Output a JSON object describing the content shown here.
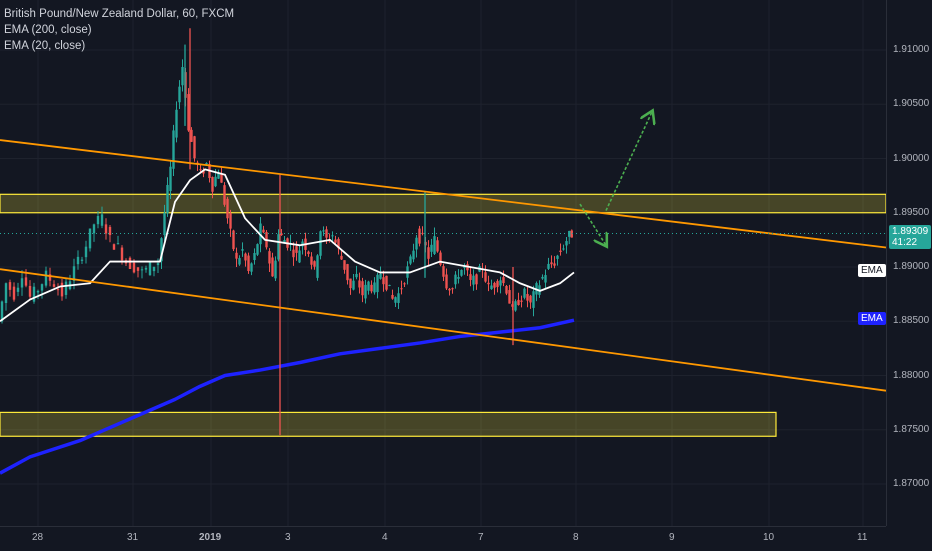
{
  "legend": {
    "title": "British Pound/New Zealand Dollar, 60, FXCM",
    "ema200": "EMA (200, close)",
    "ema20": "EMA (20, close)"
  },
  "price_axis": {
    "ticks": [
      "1.91000",
      "1.90500",
      "1.90000",
      "1.89500",
      "1.89000",
      "1.88500",
      "1.88000",
      "1.87500",
      "1.87000"
    ],
    "current_price": "1.89309",
    "countdown": "41:22",
    "ema20_badge": "EMA",
    "ema200_badge": "EMA"
  },
  "time_axis": {
    "ticks": [
      "28",
      "31",
      "2019",
      "3",
      "4",
      "7",
      "8",
      "9",
      "10",
      "11"
    ]
  },
  "colors": {
    "background": "#131722",
    "up": "#26a69a",
    "down": "#ef5350",
    "ema20": "#ffffff",
    "ema200": "#1e22ff",
    "trendline": "#ff9800",
    "zone": "#ffeb3b",
    "arrows": "#4caf50",
    "price_line": "#26a69a"
  },
  "chart_data": {
    "type": "candlestick",
    "symbol": "GBPNZD",
    "timeframe": "60",
    "ylim": [
      1.866,
      1.9125
    ],
    "price_ticks": [
      1.91,
      1.905,
      1.9,
      1.895,
      1.89,
      1.885,
      1.88,
      1.875,
      1.87
    ],
    "x_labels": [
      "28",
      "31",
      "2019",
      "3",
      "4",
      "7",
      "8",
      "9",
      "10",
      "11"
    ],
    "current_price": 1.89309,
    "ohlc_close_path": [
      [
        0,
        1.885
      ],
      [
        8,
        1.8885
      ],
      [
        16,
        1.8875
      ],
      [
        24,
        1.8895
      ],
      [
        32,
        1.8872
      ],
      [
        40,
        1.888
      ],
      [
        48,
        1.8892
      ],
      [
        56,
        1.8885
      ],
      [
        64,
        1.8875
      ],
      [
        72,
        1.889
      ],
      [
        80,
        1.8905
      ],
      [
        88,
        1.892
      ],
      [
        96,
        1.894
      ],
      [
        104,
        1.8945
      ],
      [
        112,
        1.8925
      ],
      [
        120,
        1.8918
      ],
      [
        128,
        1.8905
      ],
      [
        136,
        1.89
      ],
      [
        144,
        1.8895
      ],
      [
        152,
        1.89
      ],
      [
        160,
        1.8905
      ],
      [
        166,
        1.895
      ],
      [
        172,
        1.899
      ],
      [
        178,
        1.905
      ],
      [
        184,
        1.9085
      ],
      [
        190,
        1.903
      ],
      [
        196,
        1.9
      ],
      [
        202,
        1.8985
      ],
      [
        208,
        1.8995
      ],
      [
        214,
        1.8975
      ],
      [
        220,
        1.899
      ],
      [
        226,
        1.896
      ],
      [
        232,
        1.893
      ],
      [
        238,
        1.8905
      ],
      [
        244,
        1.8915
      ],
      [
        250,
        1.8895
      ],
      [
        256,
        1.891
      ],
      [
        262,
        1.8935
      ],
      [
        268,
        1.892
      ],
      [
        274,
        1.889
      ],
      [
        280,
        1.893
      ],
      [
        286,
        1.8925
      ],
      [
        292,
        1.892
      ],
      [
        298,
        1.891
      ],
      [
        304,
        1.8925
      ],
      [
        310,
        1.8915
      ],
      [
        316,
        1.8895
      ],
      [
        322,
        1.8935
      ],
      [
        328,
        1.8925
      ],
      [
        334,
        1.893
      ],
      [
        340,
        1.8915
      ],
      [
        346,
        1.89
      ],
      [
        352,
        1.888
      ],
      [
        358,
        1.889
      ],
      [
        364,
        1.8875
      ],
      [
        370,
        1.8885
      ],
      [
        376,
        1.888
      ],
      [
        382,
        1.8895
      ],
      [
        388,
        1.8885
      ],
      [
        394,
        1.887
      ],
      [
        400,
        1.8875
      ],
      [
        406,
        1.889
      ],
      [
        412,
        1.8905
      ],
      [
        418,
        1.893
      ],
      [
        424,
        1.8925
      ],
      [
        430,
        1.891
      ],
      [
        436,
        1.8925
      ],
      [
        442,
        1.8905
      ],
      [
        448,
        1.8885
      ],
      [
        454,
        1.888
      ],
      [
        460,
        1.8895
      ],
      [
        466,
        1.89
      ],
      [
        472,
        1.8885
      ],
      [
        478,
        1.889
      ],
      [
        484,
        1.89
      ],
      [
        490,
        1.888
      ],
      [
        496,
        1.8885
      ],
      [
        502,
        1.889
      ],
      [
        508,
        1.888
      ],
      [
        514,
        1.8858
      ],
      [
        520,
        1.887
      ],
      [
        526,
        1.8875
      ],
      [
        532,
        1.8865
      ],
      [
        538,
        1.888
      ],
      [
        544,
        1.889
      ],
      [
        550,
        1.89
      ],
      [
        556,
        1.8905
      ],
      [
        562,
        1.8915
      ],
      [
        568,
        1.8925
      ],
      [
        573,
        1.8931
      ]
    ],
    "ema20_path": [
      [
        0,
        1.885
      ],
      [
        30,
        1.887
      ],
      [
        60,
        1.8882
      ],
      [
        90,
        1.8885
      ],
      [
        110,
        1.8905
      ],
      [
        130,
        1.8905
      ],
      [
        160,
        1.8905
      ],
      [
        175,
        1.896
      ],
      [
        190,
        1.898
      ],
      [
        205,
        1.899
      ],
      [
        225,
        1.8985
      ],
      [
        245,
        1.8945
      ],
      [
        265,
        1.8925
      ],
      [
        300,
        1.892
      ],
      [
        330,
        1.8925
      ],
      [
        355,
        1.8905
      ],
      [
        380,
        1.8895
      ],
      [
        410,
        1.8895
      ],
      [
        440,
        1.8905
      ],
      [
        470,
        1.89
      ],
      [
        500,
        1.8895
      ],
      [
        520,
        1.8885
      ],
      [
        540,
        1.8878
      ],
      [
        560,
        1.8885
      ],
      [
        574,
        1.8895
      ]
    ],
    "ema200_path": [
      [
        0,
        1.871
      ],
      [
        30,
        1.8725
      ],
      [
        80,
        1.874
      ],
      [
        130,
        1.876
      ],
      [
        175,
        1.8778
      ],
      [
        200,
        1.879
      ],
      [
        225,
        1.88
      ],
      [
        260,
        1.8805
      ],
      [
        300,
        1.8812
      ],
      [
        340,
        1.882
      ],
      [
        380,
        1.8825
      ],
      [
        420,
        1.883
      ],
      [
        460,
        1.8836
      ],
      [
        500,
        1.884
      ],
      [
        540,
        1.8844
      ],
      [
        574,
        1.8851
      ]
    ],
    "trendlines": [
      {
        "from": [
          0,
          1.9017
        ],
        "to": [
          886,
          1.8918
        ]
      },
      {
        "from": [
          0,
          1.8898
        ],
        "to": [
          886,
          1.8786
        ]
      }
    ],
    "zones": [
      {
        "x_from": 0,
        "x_to": 886,
        "price_top": 1.8967,
        "price_bottom": 1.895
      },
      {
        "x_from": 0,
        "x_to": 776,
        "price_top": 1.8766,
        "price_bottom": 1.8744
      }
    ],
    "arrows": [
      {
        "from": [
          606,
          1.8952
        ],
        "to": [
          652,
          1.9043
        ]
      },
      {
        "from": [
          580,
          1.8958
        ],
        "to": [
          606,
          1.892
        ]
      }
    ]
  }
}
